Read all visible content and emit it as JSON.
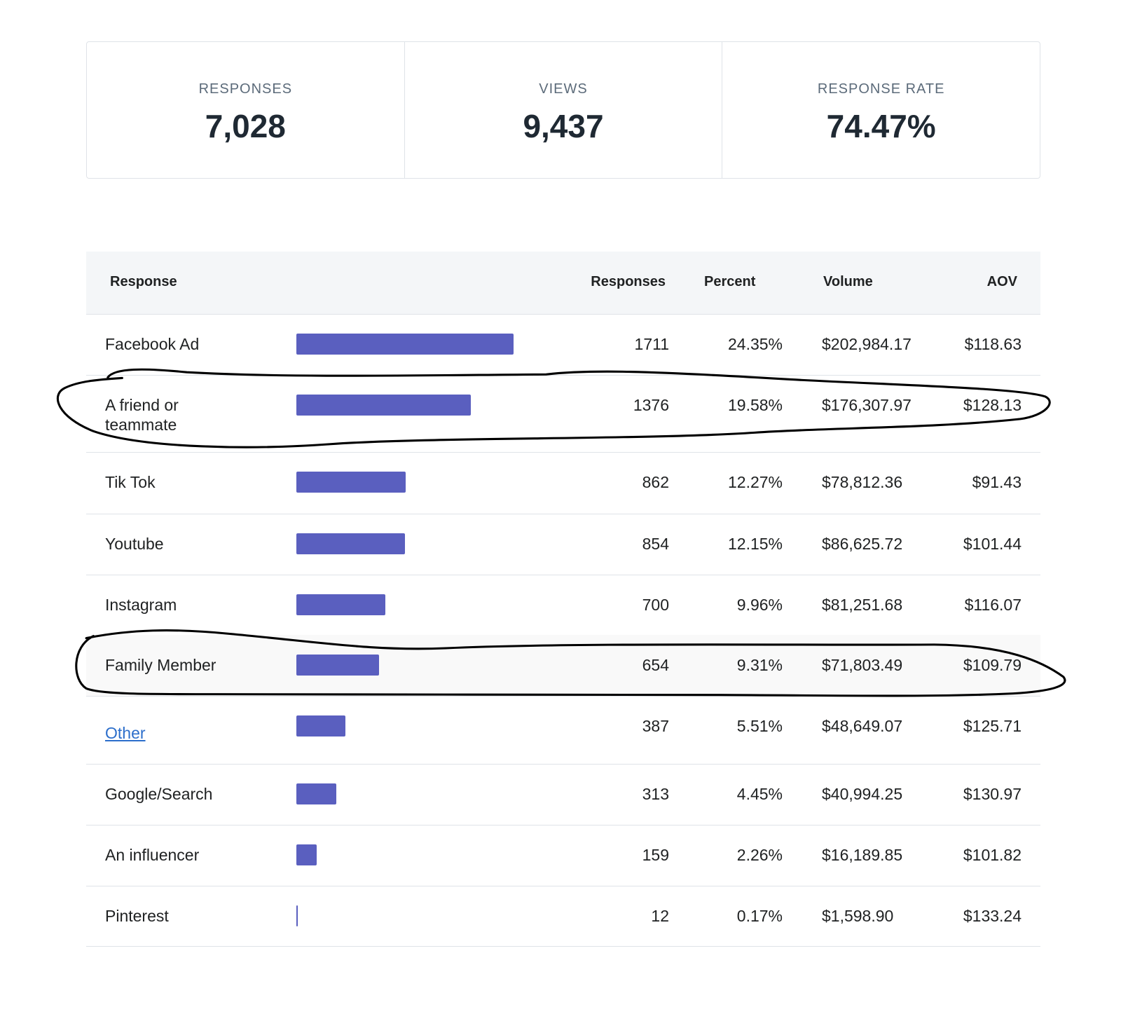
{
  "stats": [
    {
      "label": "RESPONSES",
      "value": "7,028"
    },
    {
      "label": "VIEWS",
      "value": "9,437"
    },
    {
      "label": "RESPONSE RATE",
      "value": "74.47%"
    }
  ],
  "table": {
    "headers": [
      "Response",
      "Responses",
      "Percent",
      "Volume",
      "AOV"
    ],
    "rows": [
      {
        "response": "Facebook Ad",
        "responses": 1711,
        "percent": "24.35%",
        "volume": "$202,984.17",
        "aov": "$118.63"
      },
      {
        "response": "A friend or teammate",
        "responses": 1376,
        "percent": "19.58%",
        "volume": "$176,307.97",
        "aov": "$128.13"
      },
      {
        "response": "Tik Tok",
        "responses": 862,
        "percent": "12.27%",
        "volume": "$78,812.36",
        "aov": "$91.43"
      },
      {
        "response": "Youtube",
        "responses": 854,
        "percent": "12.15%",
        "volume": "$86,625.72",
        "aov": "$101.44"
      },
      {
        "response": "Instagram",
        "responses": 700,
        "percent": "9.96%",
        "volume": "$81,251.68",
        "aov": "$116.07"
      },
      {
        "response": "Family Member",
        "responses": 654,
        "percent": "9.31%",
        "volume": "$71,803.49",
        "aov": "$109.79"
      },
      {
        "response": "Other",
        "responses": 387,
        "percent": "5.51%",
        "volume": "$48,649.07",
        "aov": "$125.71"
      },
      {
        "response": "Google/Search",
        "responses": 313,
        "percent": "4.45%",
        "volume": "$40,994.25",
        "aov": "$130.97"
      },
      {
        "response": "An influencer",
        "responses": 159,
        "percent": "2.26%",
        "volume": "$16,189.85",
        "aov": "$101.82"
      },
      {
        "response": "Pinterest",
        "responses": 12,
        "percent": "0.17%",
        "volume": "$1,598.90",
        "aov": "$133.24"
      }
    ]
  }
}
